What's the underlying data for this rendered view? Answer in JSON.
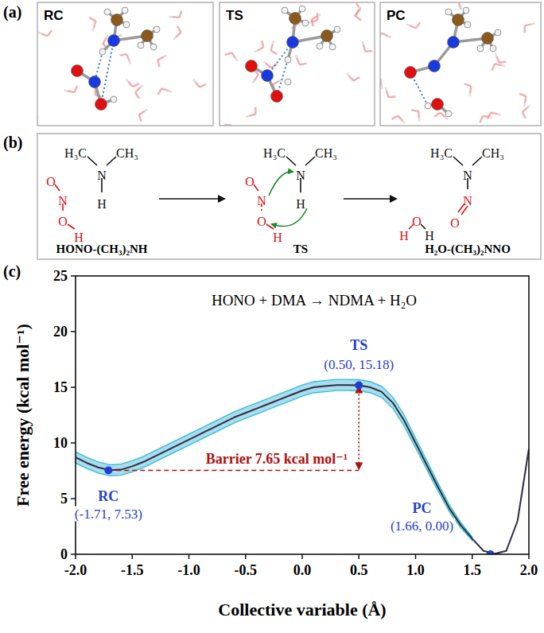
{
  "panels": {
    "a": {
      "label": "(a)",
      "snapshots": [
        "RC",
        "TS",
        "PC"
      ]
    },
    "b": {
      "label": "(b)",
      "schemes": [
        {
          "atoms": [
            "H₃C",
            "CH₃",
            "N",
            "H",
            "O",
            "N",
            "O",
            "H"
          ],
          "caption": "HONO-(CH₃)₂NH"
        },
        {
          "atoms": [
            "H₃C",
            "CH₃",
            "N",
            "H",
            "O",
            "N",
            "O",
            "H"
          ],
          "caption": "TS"
        },
        {
          "atoms": [
            "H₃C",
            "CH₃",
            "N",
            "N",
            "O",
            "H",
            "O",
            "H"
          ],
          "caption": "H₂O-(CH₃)₂NNO"
        }
      ]
    },
    "c": {
      "label": "(c)"
    }
  },
  "chart_data": {
    "type": "line",
    "title": "HONO + DMA → NDMA + H₂O",
    "x_label": "Collective variable (Å)",
    "y_label": "Free energy (kcal mol⁻¹)",
    "x": [
      -2.0,
      -1.9,
      -1.8,
      -1.7,
      -1.6,
      -1.5,
      -1.4,
      -1.3,
      -1.2,
      -1.1,
      -1.0,
      -0.9,
      -0.8,
      -0.7,
      -0.6,
      -0.5,
      -0.4,
      -0.3,
      -0.2,
      -0.1,
      0.0,
      0.1,
      0.2,
      0.3,
      0.4,
      0.5,
      0.6,
      0.7,
      0.8,
      0.9,
      1.0,
      1.1,
      1.2,
      1.3,
      1.4,
      1.5,
      1.6,
      1.7,
      1.8,
      1.9,
      2.0
    ],
    "series": [
      {
        "color": "#2e2e40",
        "values": [
          8.7,
          8.2,
          7.8,
          7.55,
          7.6,
          7.9,
          8.3,
          8.8,
          9.3,
          9.8,
          10.3,
          10.8,
          11.3,
          11.8,
          12.3,
          12.7,
          13.1,
          13.5,
          13.9,
          14.3,
          14.7,
          15.0,
          15.1,
          15.2,
          15.2,
          15.18,
          15.0,
          14.6,
          13.6,
          12.0,
          10.0,
          8.0,
          6.0,
          4.1,
          2.6,
          1.4,
          0.3,
          0.05,
          0.3,
          3.0,
          9.5
        ],
        "error": [
          0.5,
          0.5,
          0.5,
          0.5,
          0.5,
          0.5,
          0.5,
          0.5,
          0.5,
          0.5,
          0.5,
          0.5,
          0.5,
          0.5,
          0.5,
          0.5,
          0.5,
          0.5,
          0.5,
          0.5,
          0.5,
          0.5,
          0.5,
          0.5,
          0.5,
          0.5,
          0.5,
          0.5,
          0.5,
          0.5,
          0.45,
          0.4,
          0.35,
          0.3,
          0.25,
          0.15,
          null,
          null,
          null,
          null,
          null
        ]
      }
    ],
    "points": [
      {
        "label": "RC",
        "x": -1.71,
        "y": 7.53,
        "coords": "(-1.71, 7.53)"
      },
      {
        "label": "TS",
        "x": 0.5,
        "y": 15.18,
        "coords": "(0.50, 15.18)"
      },
      {
        "label": "PC",
        "x": 1.66,
        "y": 0.0,
        "coords": "(1.66, 0.00)"
      }
    ],
    "annotations": [
      {
        "text": "Barrier 7.65 kcal mol⁻¹",
        "value": 7.65
      }
    ],
    "xlim": [
      -2,
      2
    ],
    "ylim": [
      0,
      25
    ],
    "xticks": [
      {
        "value": -2,
        "label": "-2.0"
      },
      {
        "value": -1.5,
        "label": "-1.5"
      },
      {
        "value": -1,
        "label": "-1.0"
      },
      {
        "value": -0.5,
        "label": "-0.5"
      },
      {
        "value": 0,
        "label": "0.0"
      },
      {
        "value": 0.5,
        "label": "0.5"
      },
      {
        "value": 1,
        "label": "1.0"
      },
      {
        "value": 1.5,
        "label": "1.5"
      },
      {
        "value": 2,
        "label": "2.0"
      }
    ],
    "yticks": [
      0,
      5,
      10,
      15,
      20,
      25
    ],
    "grid": false
  }
}
